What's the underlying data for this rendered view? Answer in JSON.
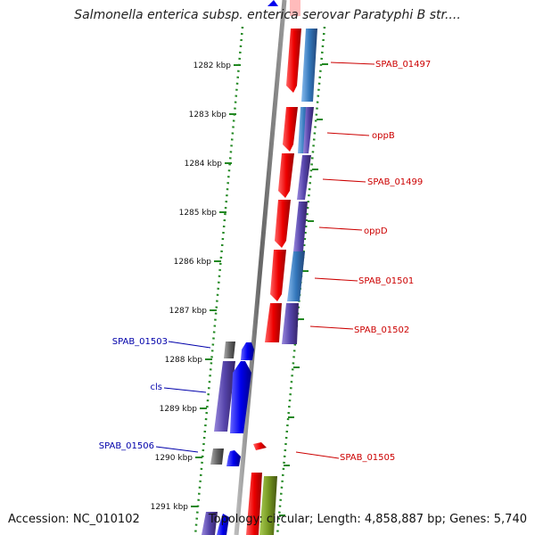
{
  "title": "Salmonella enterica subsp. enterica serovar Paratyphi B str....",
  "ticks": [
    "1282 kbp",
    "1283 kbp",
    "1284 kbp",
    "1285 kbp",
    "1286 kbp",
    "1287 kbp",
    "1288 kbp",
    "1289 kbp",
    "1290 kbp",
    "1291 kbp"
  ],
  "gene_labels_right": [
    "SPAB_01497",
    "oppB",
    "SPAB_01499",
    "oppD",
    "SPAB_01501",
    "SPAB_01502",
    "SPAB_01505"
  ],
  "gene_labels_left": [
    "SPAB_01503",
    "cls",
    "SPAB_01506"
  ],
  "footer": {
    "accession": "Accession: NC_010102",
    "summary": "Topology: circular; Length: 4,858,887 bp; Genes: 5,740"
  },
  "colors": {
    "forward_gene": "#ee1111",
    "reverse_gene": "#1111ee",
    "ring_light_blue": "#4488cc",
    "ring_purple": "#5544aa",
    "ring_gray": "#777777",
    "ring_green": "#779922",
    "ruler_dots": "#228822",
    "label_red": "#cc0000",
    "label_blue": "#0000aa"
  }
}
